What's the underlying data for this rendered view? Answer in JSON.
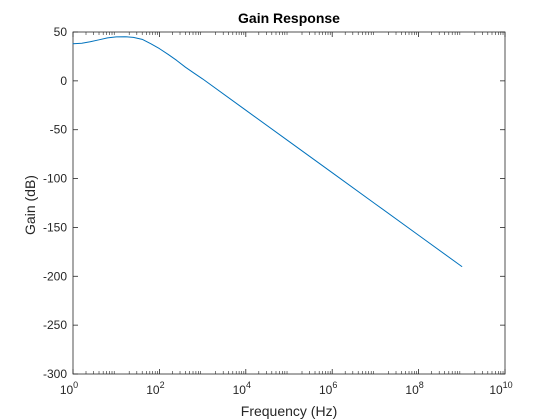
{
  "chart_data": {
    "type": "line",
    "title": "Gain Response",
    "xlabel": "Frequency (Hz)",
    "ylabel": "Gain (dB)",
    "xscale": "log",
    "xlim": [
      1,
      10000000000
    ],
    "ylim": [
      -300,
      50
    ],
    "grid": false,
    "x_ticks": [
      {
        "base": "10",
        "exp": "0",
        "value": 1
      },
      {
        "base": "10",
        "exp": "2",
        "value": 100
      },
      {
        "base": "10",
        "exp": "4",
        "value": 10000
      },
      {
        "base": "10",
        "exp": "6",
        "value": 1000000
      },
      {
        "base": "10",
        "exp": "8",
        "value": 100000000
      },
      {
        "base": "10",
        "exp": "10",
        "value": 10000000000
      }
    ],
    "y_ticks": [
      {
        "label": "50",
        "value": 50
      },
      {
        "label": "0",
        "value": 0
      },
      {
        "label": "-50",
        "value": -50
      },
      {
        "label": "-100",
        "value": -100
      },
      {
        "label": "-150",
        "value": -150
      },
      {
        "label": "-200",
        "value": -200
      },
      {
        "label": "-250",
        "value": -250
      },
      {
        "label": "-300",
        "value": -300
      }
    ],
    "series": [
      {
        "color": "#0072BD",
        "x": [
          1,
          1.6,
          2.5,
          4,
          6.3,
          10,
          16,
          25,
          40,
          63,
          100,
          160,
          250,
          400,
          630,
          1000,
          10000,
          100000,
          1000000,
          10000000,
          100000000,
          1000000000
        ],
        "y": [
          38,
          38.5,
          40,
          42,
          44,
          45,
          45.2,
          44.5,
          42.5,
          38,
          33,
          27,
          21,
          14,
          8,
          2,
          -30,
          -62,
          -94,
          -126,
          -158,
          -190
        ]
      }
    ]
  }
}
